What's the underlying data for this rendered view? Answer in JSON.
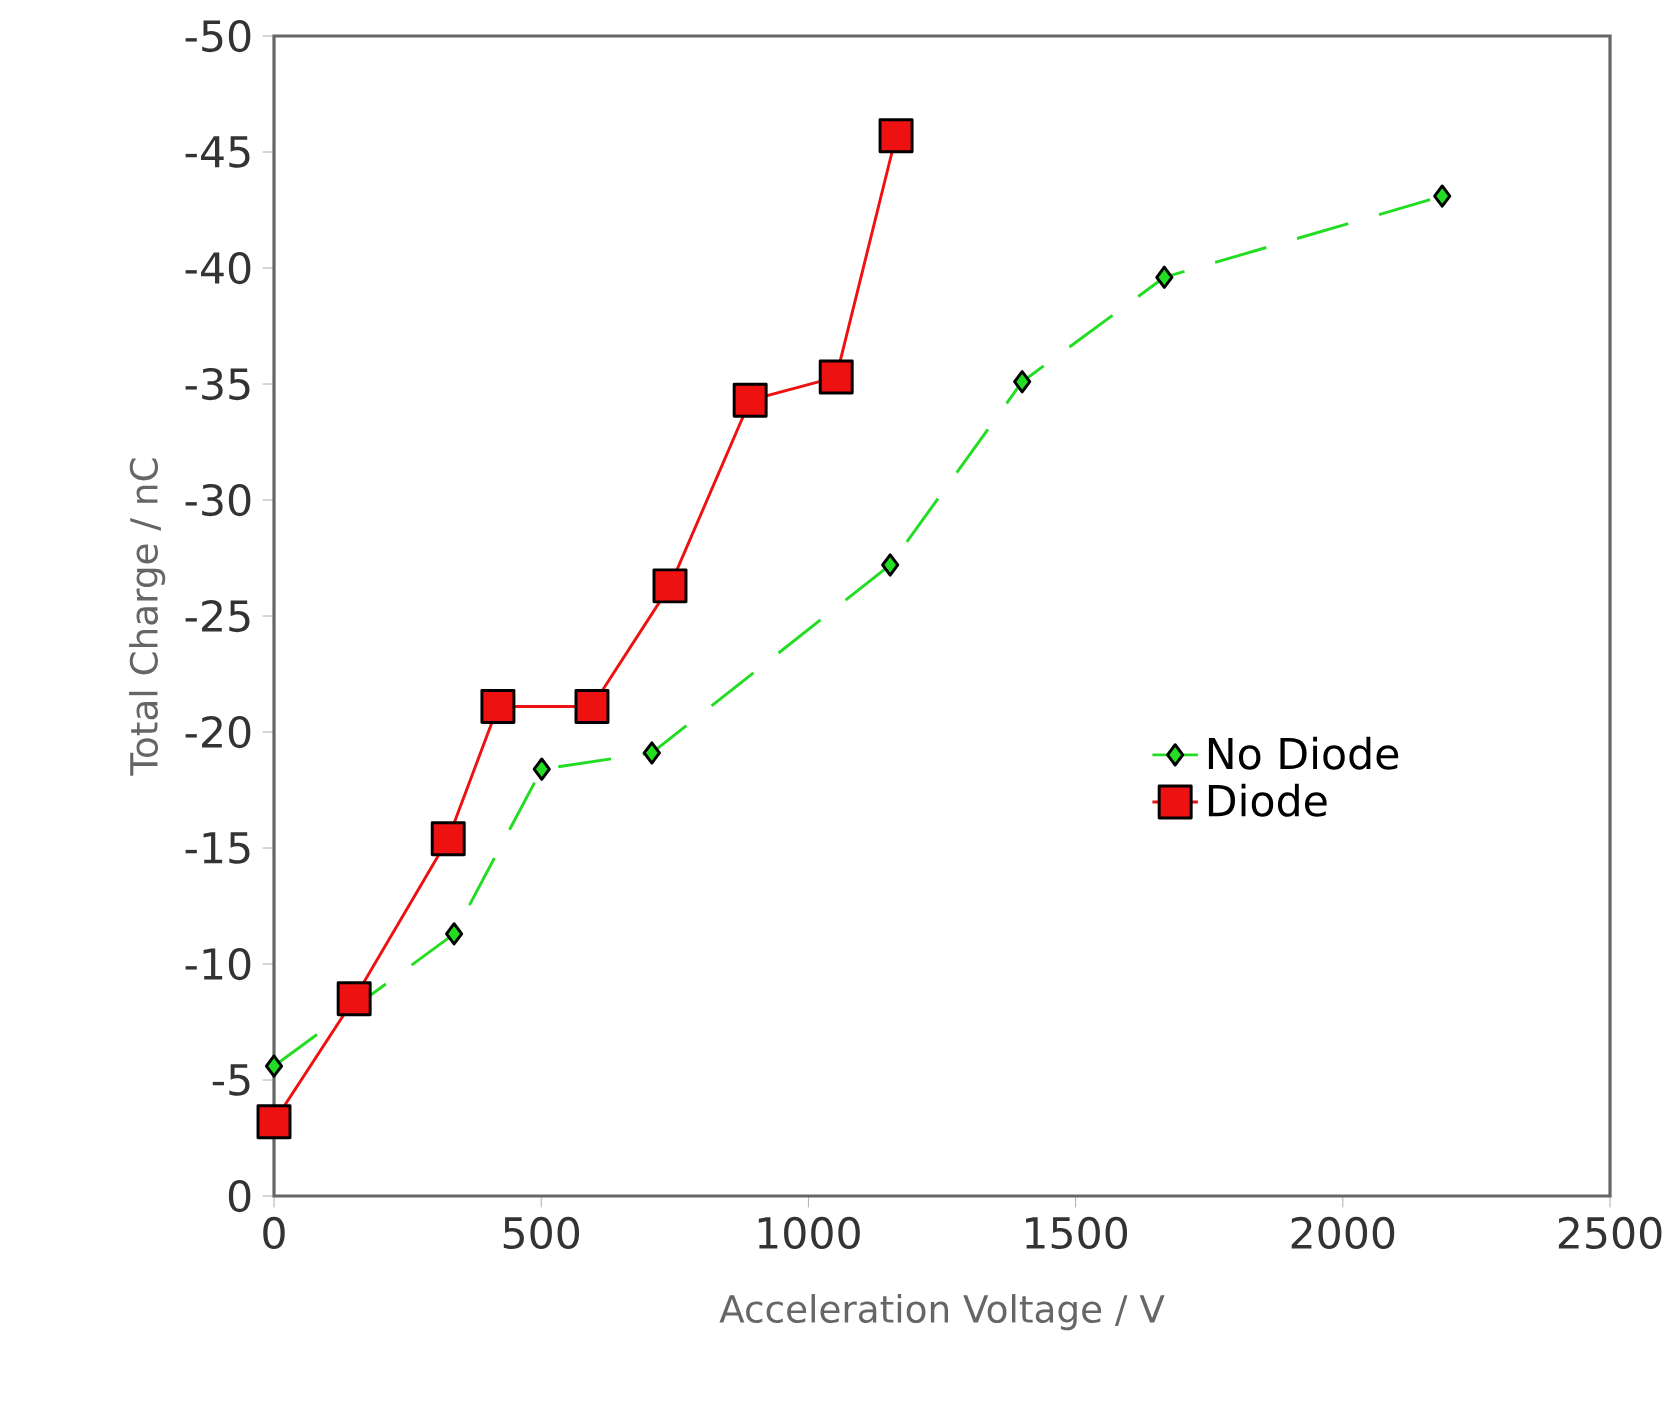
{
  "chart_data": {
    "type": "line",
    "xlabel": "Acceleration Voltage / V",
    "ylabel": "Total Charge / nC",
    "xlim": [
      0,
      2500
    ],
    "xticks": [
      0,
      500,
      1000,
      1500,
      2000,
      2500
    ],
    "ylim": [
      0,
      -50
    ],
    "yticks": [
      0,
      -5,
      -10,
      -15,
      -20,
      -25,
      -30,
      -35,
      -40,
      -45,
      -50
    ],
    "grid": false,
    "legend": "right",
    "series": [
      {
        "name": "No Diode",
        "color": "#22dd22",
        "marker": "diamond",
        "line_style": "dashed",
        "x": [
          0,
          337,
          501,
          707,
          1153,
          1400,
          1666,
          2186
        ],
        "values": [
          -5.6,
          -11.3,
          -18.4,
          -19.1,
          -27.2,
          -35.1,
          -39.6,
          -43.1
        ]
      },
      {
        "name": "Diode",
        "color": "#ee1111",
        "marker": "square",
        "line_style": "solid",
        "x": [
          0,
          150,
          326,
          419,
          595,
          741,
          891,
          1052,
          1164
        ],
        "values": [
          -3.2,
          -8.5,
          -15.4,
          -21.1,
          -21.1,
          -26.3,
          -34.3,
          -35.3,
          -45.7
        ]
      }
    ]
  }
}
